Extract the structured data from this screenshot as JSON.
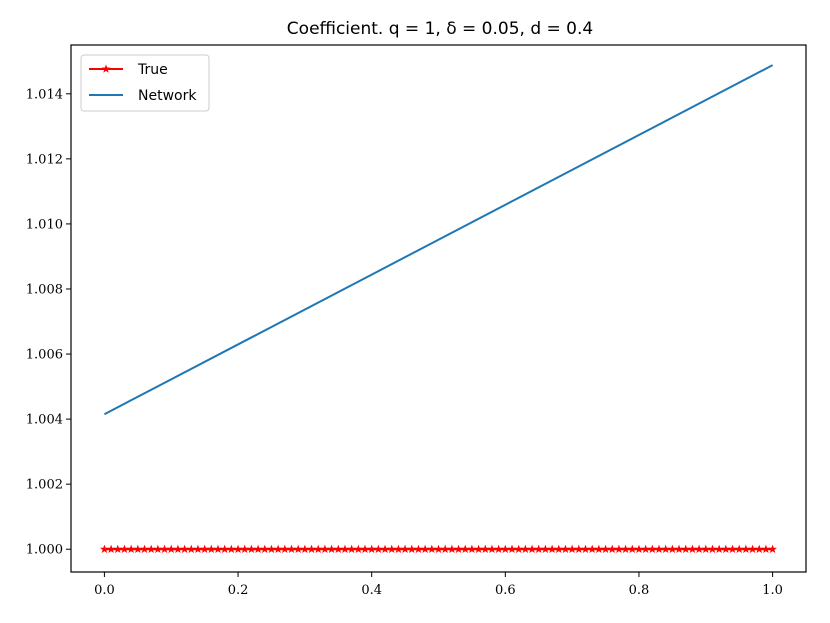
{
  "chart_data": {
    "type": "line",
    "title": "Coefficient. q = 1, δ = 0.05, d = 0.4",
    "xlabel": "",
    "ylabel": "",
    "xlim": [
      -0.05,
      1.05
    ],
    "ylim": [
      0.9993,
      1.0155
    ],
    "x_ticks": [
      0.0,
      0.2,
      0.4,
      0.6,
      0.8,
      1.0
    ],
    "x_tick_labels": [
      "0.0",
      "0.2",
      "0.4",
      "0.6",
      "0.8",
      "1.0"
    ],
    "y_ticks": [
      1.0,
      1.002,
      1.004,
      1.006,
      1.008,
      1.01,
      1.012,
      1.014
    ],
    "y_tick_labels": [
      "1.000",
      "1.002",
      "1.004",
      "1.006",
      "1.008",
      "1.010",
      "1.012",
      "1.014"
    ],
    "grid": false,
    "legend_position": "top-left",
    "series": [
      {
        "name": "True",
        "color": "#ff0000",
        "marker": "star",
        "x_start": 0.0,
        "x_end": 1.0,
        "num_points": 101,
        "y_constant": 1.0
      },
      {
        "name": "Network",
        "color": "#1f77b4",
        "marker": "none",
        "x": [
          0.0,
          1.0
        ],
        "y": [
          1.00415,
          1.01488
        ]
      }
    ]
  }
}
